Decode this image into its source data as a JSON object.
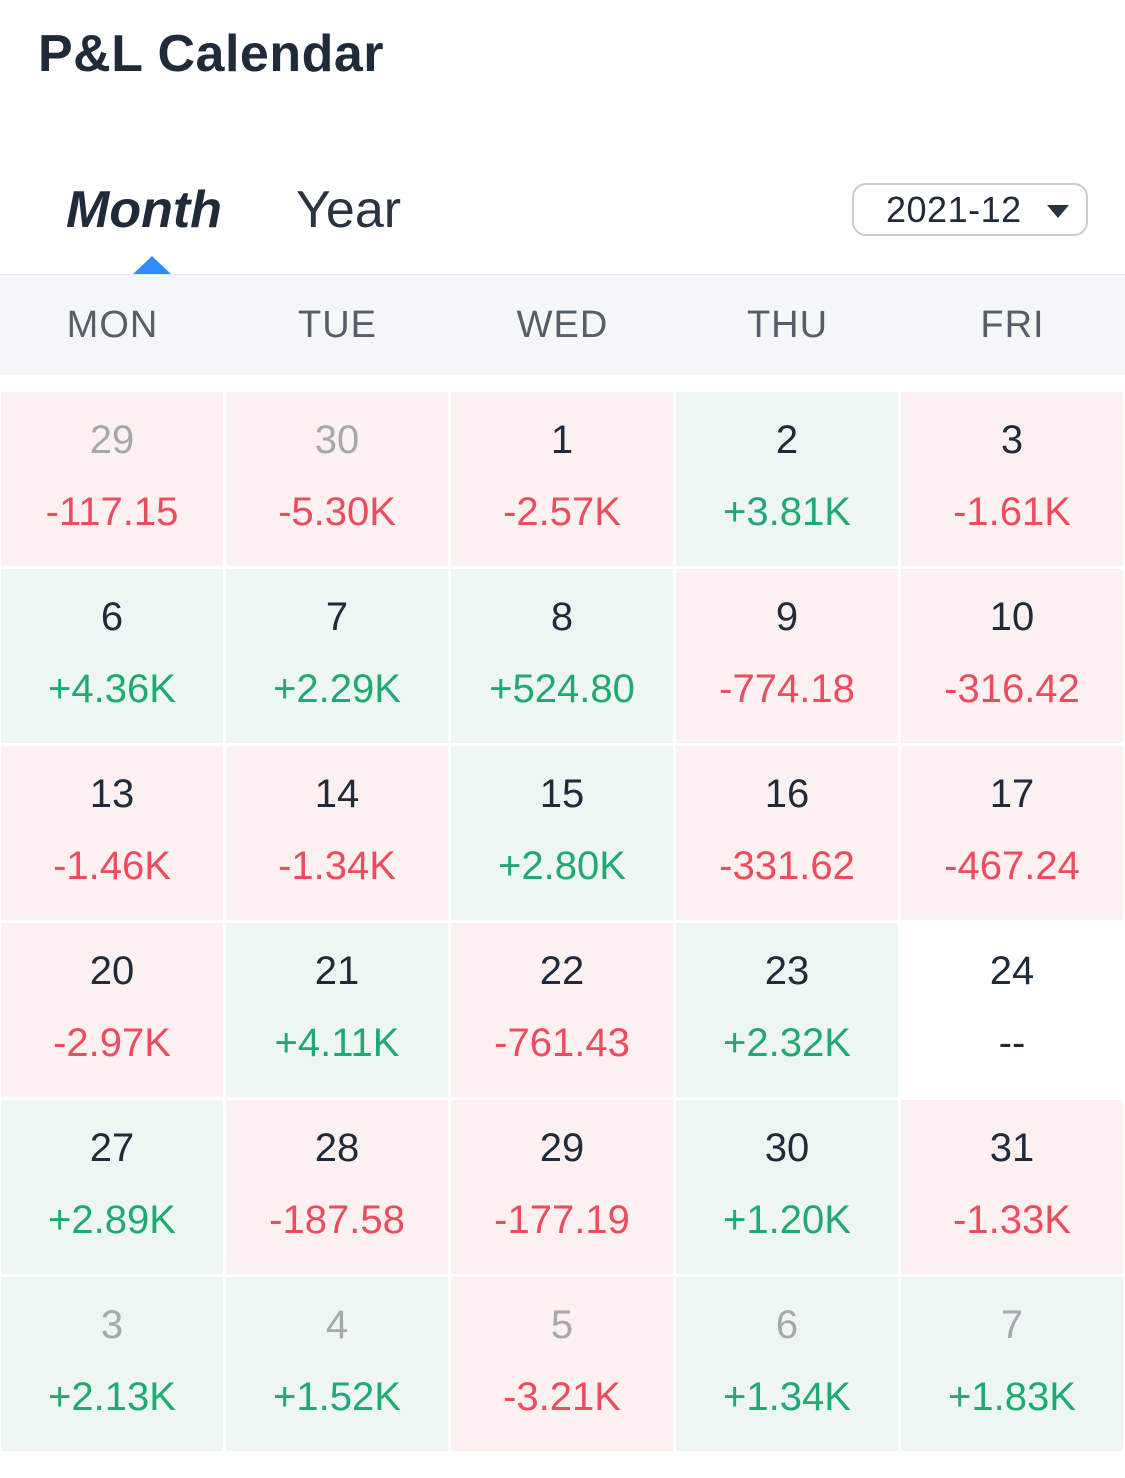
{
  "title": "P&L Calendar",
  "tabs": {
    "month": "Month",
    "year": "Year",
    "active": "month"
  },
  "month_select": {
    "value": "2021-12"
  },
  "weekdays": [
    "MON",
    "TUE",
    "WED",
    "THU",
    "FRI"
  ],
  "colors": {
    "positive": "#1faa74",
    "negative": "#ee4b5f",
    "positive_bg": "#edf6f2",
    "negative_bg": "#fcf0f0",
    "accent": "#2f8cff"
  },
  "weeks": [
    [
      {
        "day": "29",
        "pnl": "-117.15",
        "status": "negative",
        "in_month": false
      },
      {
        "day": "30",
        "pnl": "-5.30K",
        "status": "negative",
        "in_month": false
      },
      {
        "day": "1",
        "pnl": "-2.57K",
        "status": "negative",
        "in_month": true
      },
      {
        "day": "2",
        "pnl": "+3.81K",
        "status": "positive",
        "in_month": true
      },
      {
        "day": "3",
        "pnl": "-1.61K",
        "status": "negative",
        "in_month": true
      }
    ],
    [
      {
        "day": "6",
        "pnl": "+4.36K",
        "status": "positive",
        "in_month": true
      },
      {
        "day": "7",
        "pnl": "+2.29K",
        "status": "positive",
        "in_month": true
      },
      {
        "day": "8",
        "pnl": "+524.80",
        "status": "positive",
        "in_month": true
      },
      {
        "day": "9",
        "pnl": "-774.18",
        "status": "negative",
        "in_month": true
      },
      {
        "day": "10",
        "pnl": "-316.42",
        "status": "negative",
        "in_month": true
      }
    ],
    [
      {
        "day": "13",
        "pnl": "-1.46K",
        "status": "negative",
        "in_month": true
      },
      {
        "day": "14",
        "pnl": "-1.34K",
        "status": "negative",
        "in_month": true
      },
      {
        "day": "15",
        "pnl": "+2.80K",
        "status": "positive",
        "in_month": true
      },
      {
        "day": "16",
        "pnl": "-331.62",
        "status": "negative",
        "in_month": true
      },
      {
        "day": "17",
        "pnl": "-467.24",
        "status": "negative",
        "in_month": true
      }
    ],
    [
      {
        "day": "20",
        "pnl": "-2.97K",
        "status": "negative",
        "in_month": true
      },
      {
        "day": "21",
        "pnl": "+4.11K",
        "status": "positive",
        "in_month": true
      },
      {
        "day": "22",
        "pnl": "-761.43",
        "status": "negative",
        "in_month": true
      },
      {
        "day": "23",
        "pnl": "+2.32K",
        "status": "positive",
        "in_month": true
      },
      {
        "day": "24",
        "pnl": "--",
        "status": "none",
        "in_month": true
      }
    ],
    [
      {
        "day": "27",
        "pnl": "+2.89K",
        "status": "positive",
        "in_month": true
      },
      {
        "day": "28",
        "pnl": "-187.58",
        "status": "negative",
        "in_month": true
      },
      {
        "day": "29",
        "pnl": "-177.19",
        "status": "negative",
        "in_month": true
      },
      {
        "day": "30",
        "pnl": "+1.20K",
        "status": "positive",
        "in_month": true
      },
      {
        "day": "31",
        "pnl": "-1.33K",
        "status": "negative",
        "in_month": true
      }
    ],
    [
      {
        "day": "3",
        "pnl": "+2.13K",
        "status": "positive",
        "in_month": false
      },
      {
        "day": "4",
        "pnl": "+1.52K",
        "status": "positive",
        "in_month": false
      },
      {
        "day": "5",
        "pnl": "-3.21K",
        "status": "negative",
        "in_month": false
      },
      {
        "day": "6",
        "pnl": "+1.34K",
        "status": "positive",
        "in_month": false
      },
      {
        "day": "7",
        "pnl": "+1.83K",
        "status": "positive",
        "in_month": false
      }
    ]
  ]
}
